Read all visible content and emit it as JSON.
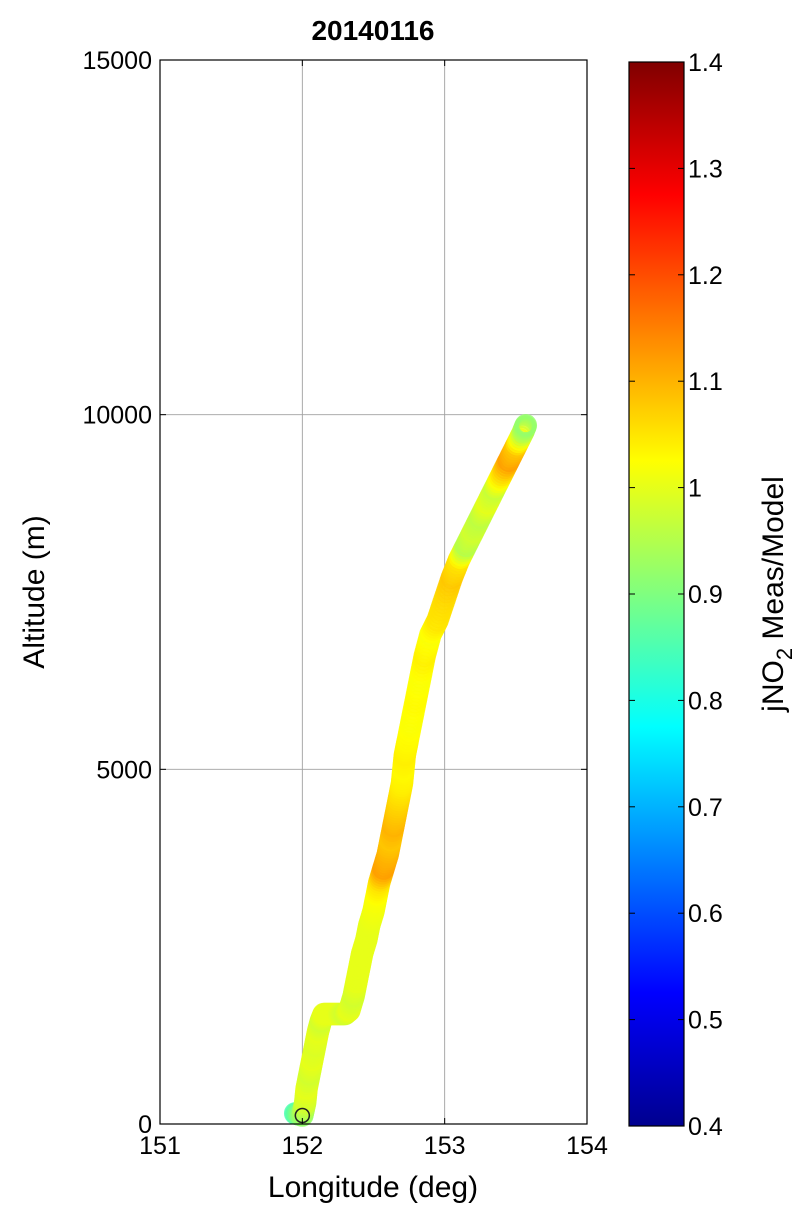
{
  "chart_data": {
    "type": "scatter",
    "title": "20140116",
    "xlabel": "Longitude (deg)",
    "ylabel": "Altitude (m)",
    "xlim": [
      151,
      154
    ],
    "ylim": [
      0,
      15000
    ],
    "xticks": [
      "151",
      "152",
      "153",
      "154"
    ],
    "yticks": [
      "0",
      "5000",
      "10000",
      "15000"
    ],
    "grid": true,
    "marker": "open-circle",
    "colorbar": {
      "label_parts": [
        "jNO",
        "2",
        " Meas/Model"
      ],
      "range": [
        0.4,
        1.4
      ],
      "ticks": [
        "0.4",
        "0.5",
        "0.6",
        "0.7",
        "0.8",
        "0.9",
        "1",
        "1.1",
        "1.2",
        "1.3",
        "1.4"
      ],
      "colormap": "jet"
    },
    "series": [
      {
        "points": [
          [
            151.95,
            150,
            0.85
          ],
          [
            152.0,
            120,
            0.92
          ],
          [
            152.02,
            300,
            0.98
          ],
          [
            152.03,
            500,
            1.0
          ],
          [
            152.05,
            700,
            0.98
          ],
          [
            152.07,
            900,
            1.0
          ],
          [
            152.09,
            1100,
            0.99
          ],
          [
            152.11,
            1300,
            1.0
          ],
          [
            152.13,
            1450,
            0.98
          ],
          [
            152.15,
            1550,
            1.0
          ],
          [
            152.2,
            1550,
            1.0
          ],
          [
            152.25,
            1550,
            1.0
          ],
          [
            152.3,
            1550,
            0.98
          ],
          [
            152.33,
            1600,
            1.0
          ],
          [
            152.36,
            1800,
            0.98
          ],
          [
            152.38,
            2000,
            1.0
          ],
          [
            152.4,
            2200,
            1.0
          ],
          [
            152.42,
            2400,
            1.0
          ],
          [
            152.45,
            2600,
            1.0
          ],
          [
            152.47,
            2800,
            1.0
          ],
          [
            152.5,
            3000,
            1.01
          ],
          [
            152.52,
            3200,
            1.02
          ],
          [
            152.54,
            3400,
            1.05
          ],
          [
            152.57,
            3600,
            1.12
          ],
          [
            152.6,
            3800,
            1.1
          ],
          [
            152.62,
            4000,
            1.08
          ],
          [
            152.64,
            4200,
            1.1
          ],
          [
            152.66,
            4400,
            1.08
          ],
          [
            152.68,
            4600,
            1.06
          ],
          [
            152.7,
            4800,
            1.04
          ],
          [
            152.71,
            5000,
            1.03
          ],
          [
            152.72,
            5200,
            1.04
          ],
          [
            152.74,
            5400,
            1.03
          ],
          [
            152.77,
            5700,
            1.02
          ],
          [
            152.8,
            6000,
            1.03
          ],
          [
            152.83,
            6300,
            1.02
          ],
          [
            152.86,
            6600,
            1.04
          ],
          [
            152.9,
            6900,
            1.02
          ],
          [
            152.95,
            7100,
            1.05
          ],
          [
            153.0,
            7400,
            1.06
          ],
          [
            153.05,
            7700,
            1.08
          ],
          [
            153.1,
            7950,
            1.05
          ],
          [
            153.15,
            8150,
            0.95
          ],
          [
            153.2,
            8350,
            0.98
          ],
          [
            153.25,
            8550,
            0.96
          ],
          [
            153.3,
            8750,
            1.0
          ],
          [
            153.35,
            8950,
            0.97
          ],
          [
            153.4,
            9150,
            1.05
          ],
          [
            153.45,
            9350,
            1.12
          ],
          [
            153.5,
            9550,
            1.08
          ],
          [
            153.55,
            9750,
            0.96
          ],
          [
            153.57,
            9850,
            0.92
          ]
        ]
      }
    ]
  }
}
